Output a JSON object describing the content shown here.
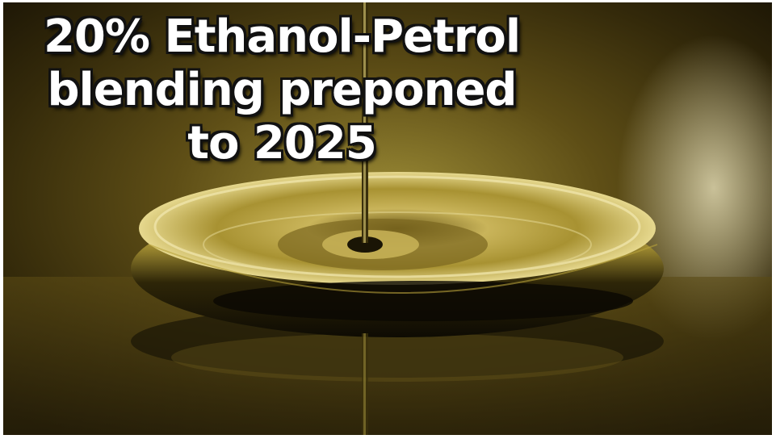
{
  "headline": {
    "line1": "20% Ethanol-Petrol",
    "line2": "blending preponed",
    "line3": "to 2025"
  },
  "colors": {
    "oil_dark": "#1a1505",
    "oil_gold": "#b8a23a",
    "background": "#4a3c10",
    "text": "#ffffff",
    "text_outline": "#111111"
  }
}
